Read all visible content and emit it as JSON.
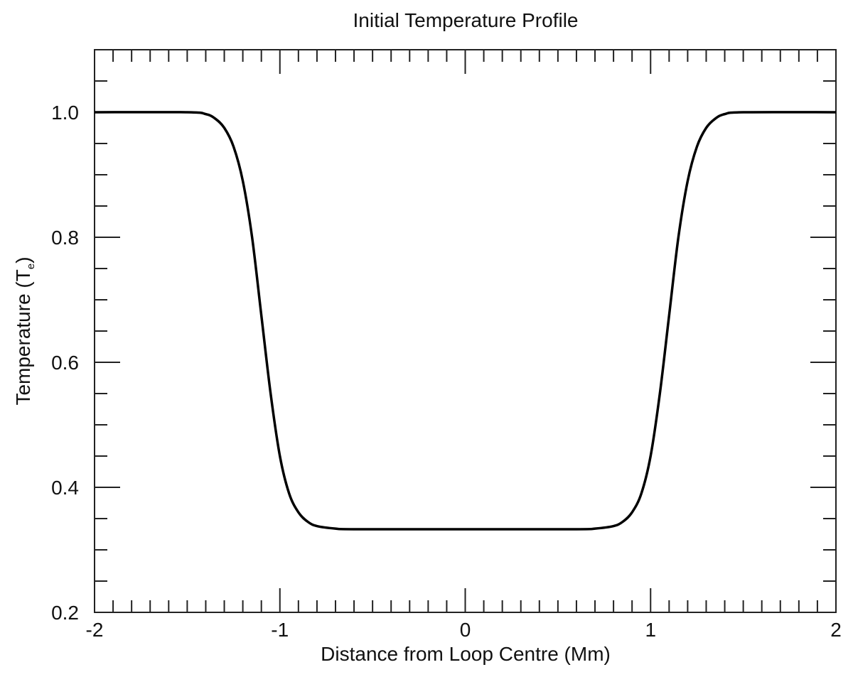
{
  "chart_data": {
    "type": "line",
    "title": "Initial Temperature Profile",
    "xlabel": "Distance from Loop Centre (Mm)",
    "ylabel": "Temperature (T",
    "ylabel_subscript": "e",
    "ylabel_close": ")",
    "xlim": [
      -2,
      2
    ],
    "ylim": [
      0.2,
      1.1
    ],
    "x_ticks": [
      -2,
      -1,
      0,
      1,
      2
    ],
    "x_tick_labels": [
      "-2",
      "-1",
      "0",
      "1",
      "2"
    ],
    "y_ticks": [
      0.2,
      0.4,
      0.6,
      0.8,
      1.0
    ],
    "y_tick_labels": [
      "0.2",
      "0.4",
      "0.6",
      "0.8",
      "1.0"
    ],
    "grid": false,
    "series": [
      {
        "color": "#000000",
        "x": [
          -2.0,
          -1.5,
          -1.4,
          -1.35,
          -1.3,
          -1.25,
          -1.2,
          -1.15,
          -1.1,
          -1.05,
          -1.0,
          -0.95,
          -0.9,
          -0.85,
          -0.8,
          -0.7,
          -0.6,
          0.0,
          0.6,
          0.7,
          0.8,
          0.85,
          0.9,
          0.95,
          1.0,
          1.05,
          1.1,
          1.15,
          1.2,
          1.25,
          1.3,
          1.35,
          1.4,
          1.5,
          2.0
        ],
        "y": [
          1.0,
          1.0,
          0.997,
          0.99,
          0.975,
          0.945,
          0.89,
          0.8,
          0.675,
          0.55,
          0.45,
          0.39,
          0.36,
          0.345,
          0.338,
          0.334,
          0.333,
          0.333,
          0.333,
          0.334,
          0.338,
          0.345,
          0.36,
          0.39,
          0.45,
          0.55,
          0.675,
          0.8,
          0.89,
          0.945,
          0.975,
          0.99,
          0.997,
          1.0,
          1.0
        ]
      }
    ]
  }
}
